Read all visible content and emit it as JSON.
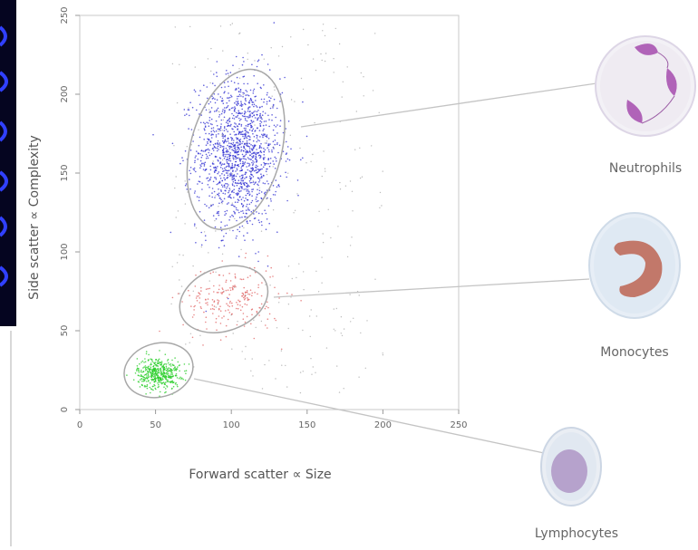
{
  "chart_data": {
    "type": "scatter",
    "xlabel": "Forward scatter ∝ Size",
    "ylabel": "Side scatter ∝ Complexity",
    "xlim": [
      0,
      250
    ],
    "ylim": [
      0,
      250
    ],
    "x_ticks": [
      "0",
      "50",
      "100",
      "150",
      "200",
      "250"
    ],
    "y_ticks": [
      "0",
      "50",
      "100",
      "150",
      "200",
      "250"
    ],
    "grid": false,
    "series": [
      {
        "name": "Neutrophils",
        "color": "#2a2ad0",
        "center": [
          105,
          163
        ],
        "spread": [
          14,
          24
        ],
        "count": 1400
      },
      {
        "name": "Monocytes",
        "color": "#e06060",
        "center": [
          100,
          70
        ],
        "spread": [
          16,
          11
        ],
        "count": 220
      },
      {
        "name": "Lymphocytes",
        "color": "#22cc22",
        "center": [
          52,
          23
        ],
        "spread": [
          7,
          5
        ],
        "count": 450
      }
    ],
    "gates": [
      {
        "name": "Neutrophils",
        "cx": 103,
        "cy": 165,
        "rx": 30,
        "ry": 52,
        "rotate_deg": 15
      },
      {
        "name": "Monocytes",
        "cx": 95,
        "cy": 70,
        "rx": 30,
        "ry": 20,
        "rotate_deg": -20
      },
      {
        "name": "Lymphocytes",
        "cx": 52,
        "cy": 25,
        "rx": 23,
        "ry": 17,
        "rotate_deg": -15
      }
    ],
    "cells": [
      {
        "label": "Neutrophils",
        "icon": "neutrophil-icon"
      },
      {
        "label": "Monocytes",
        "icon": "monocyte-icon"
      },
      {
        "label": "Lymphocytes",
        "icon": "lymphocyte-icon"
      }
    ]
  }
}
